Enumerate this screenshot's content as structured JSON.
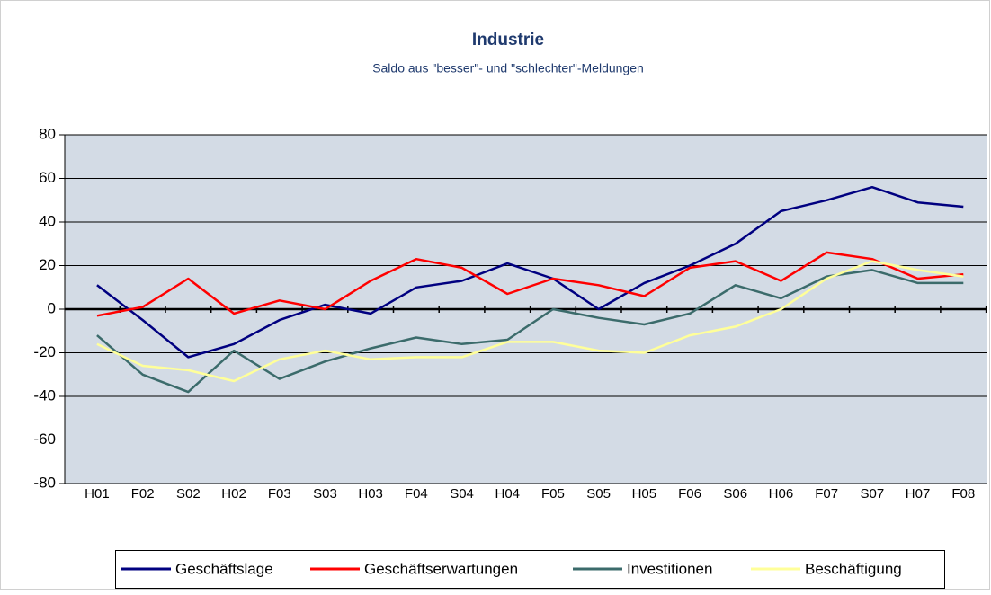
{
  "chart_data": {
    "type": "line",
    "title": "Industrie",
    "subtitle": "Saldo aus \"besser\"- und \"schlechter\"-Meldungen",
    "categories": [
      "H01",
      "F02",
      "S02",
      "H02",
      "F03",
      "S03",
      "H03",
      "F04",
      "S04",
      "H04",
      "F05",
      "S05",
      "H05",
      "F06",
      "S06",
      "H06",
      "F07",
      "S07",
      "H07",
      "F08"
    ],
    "series": [
      {
        "name": "Geschäftslage",
        "color": "#000080",
        "values": [
          11,
          -5,
          -22,
          -16,
          -5,
          2,
          -2,
          10,
          13,
          21,
          14,
          0,
          12,
          20,
          30,
          45,
          50,
          56,
          49,
          47
        ]
      },
      {
        "name": "Geschäftserwartungen",
        "color": "#ff0000",
        "values": [
          -3,
          1,
          14,
          -2,
          4,
          0,
          13,
          23,
          19,
          7,
          14,
          11,
          6,
          19,
          22,
          13,
          26,
          23,
          14,
          16
        ]
      },
      {
        "name": "Investitionen",
        "color": "#3b6b6b",
        "values": [
          -12,
          -30,
          -38,
          -19,
          -32,
          -24,
          -18,
          -13,
          -16,
          -14,
          0,
          -4,
          -7,
          -2,
          11,
          5,
          15,
          18,
          12,
          12
        ]
      },
      {
        "name": "Beschäftigung",
        "color": "#ffff99",
        "values": [
          -16,
          -26,
          -28,
          -33,
          -23,
          -19,
          -23,
          -22,
          -22,
          -15,
          -15,
          -19,
          -20,
          -12,
          -8,
          0,
          14,
          22,
          18,
          15
        ]
      }
    ],
    "ylim": [
      -80,
      80
    ],
    "yticks": [
      -80,
      -60,
      -40,
      -20,
      0,
      20,
      40,
      60,
      80
    ],
    "grid": true,
    "legend": "bottom"
  }
}
